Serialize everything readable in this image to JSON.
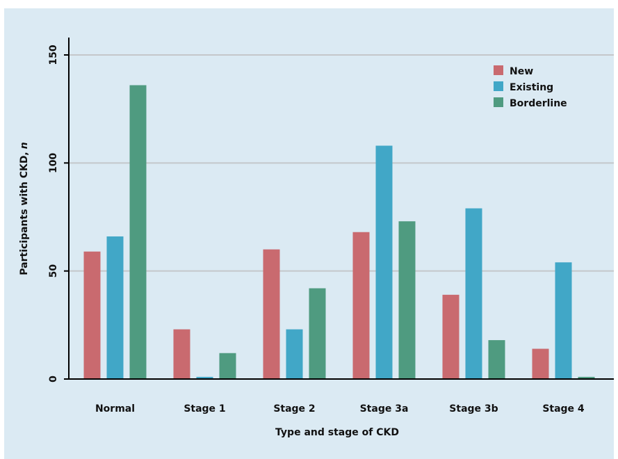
{
  "chart_data": {
    "type": "bar",
    "categories": [
      "Normal",
      "Stage 1",
      "Stage 2",
      "Stage 3a",
      "Stage 3b",
      "Stage 4"
    ],
    "series": [
      {
        "name": "New",
        "color": "#c96a6f",
        "values": [
          59,
          23,
          60,
          68,
          39,
          14
        ]
      },
      {
        "name": "Existing",
        "color": "#41a7c7",
        "values": [
          66,
          1,
          23,
          108,
          79,
          54
        ]
      },
      {
        "name": "Borderline",
        "color": "#4f9b80",
        "values": [
          136,
          12,
          42,
          73,
          18,
          1
        ]
      }
    ],
    "xlabel": "Type and stage of CKD",
    "ylabel": "Participants with CKD,",
    "ylabel_italic": "n",
    "ylim": [
      0,
      150
    ],
    "yticks": [
      0,
      50,
      100,
      150
    ],
    "grid": true,
    "legend_position": "top-right"
  }
}
